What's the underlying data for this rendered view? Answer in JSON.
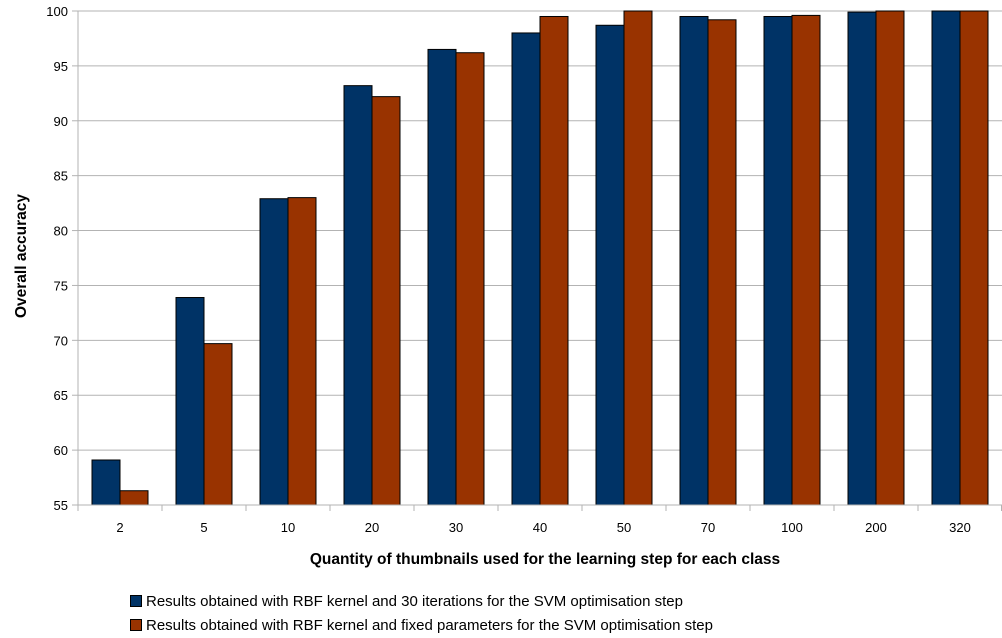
{
  "chart_data": {
    "type": "bar",
    "xlabel": "Quantity of thumbnails used for the learning step for each class",
    "ylabel": "Overall accuracy",
    "ylim": [
      55,
      100
    ],
    "yticks": [
      55,
      60,
      65,
      70,
      75,
      80,
      85,
      90,
      95,
      100
    ],
    "grid": true,
    "legend_position": "bottom",
    "categories": [
      "2",
      "5",
      "10",
      "20",
      "30",
      "40",
      "50",
      "70",
      "100",
      "200",
      "320"
    ],
    "series": [
      {
        "name": "Results obtained with RBF kernel and 30 iterations for the SVM optimisation step",
        "color": "#003366",
        "values": [
          59.1,
          73.9,
          82.9,
          93.2,
          96.5,
          98.0,
          98.7,
          99.5,
          99.5,
          99.9,
          100.0
        ]
      },
      {
        "name": "Results obtained with RBF kernel and fixed parameters for the SVM optimisation step",
        "color": "#993300",
        "values": [
          56.3,
          69.7,
          83.0,
          92.2,
          96.2,
          99.5,
          100.0,
          99.2,
          99.6,
          100.0,
          100.0
        ]
      }
    ]
  }
}
